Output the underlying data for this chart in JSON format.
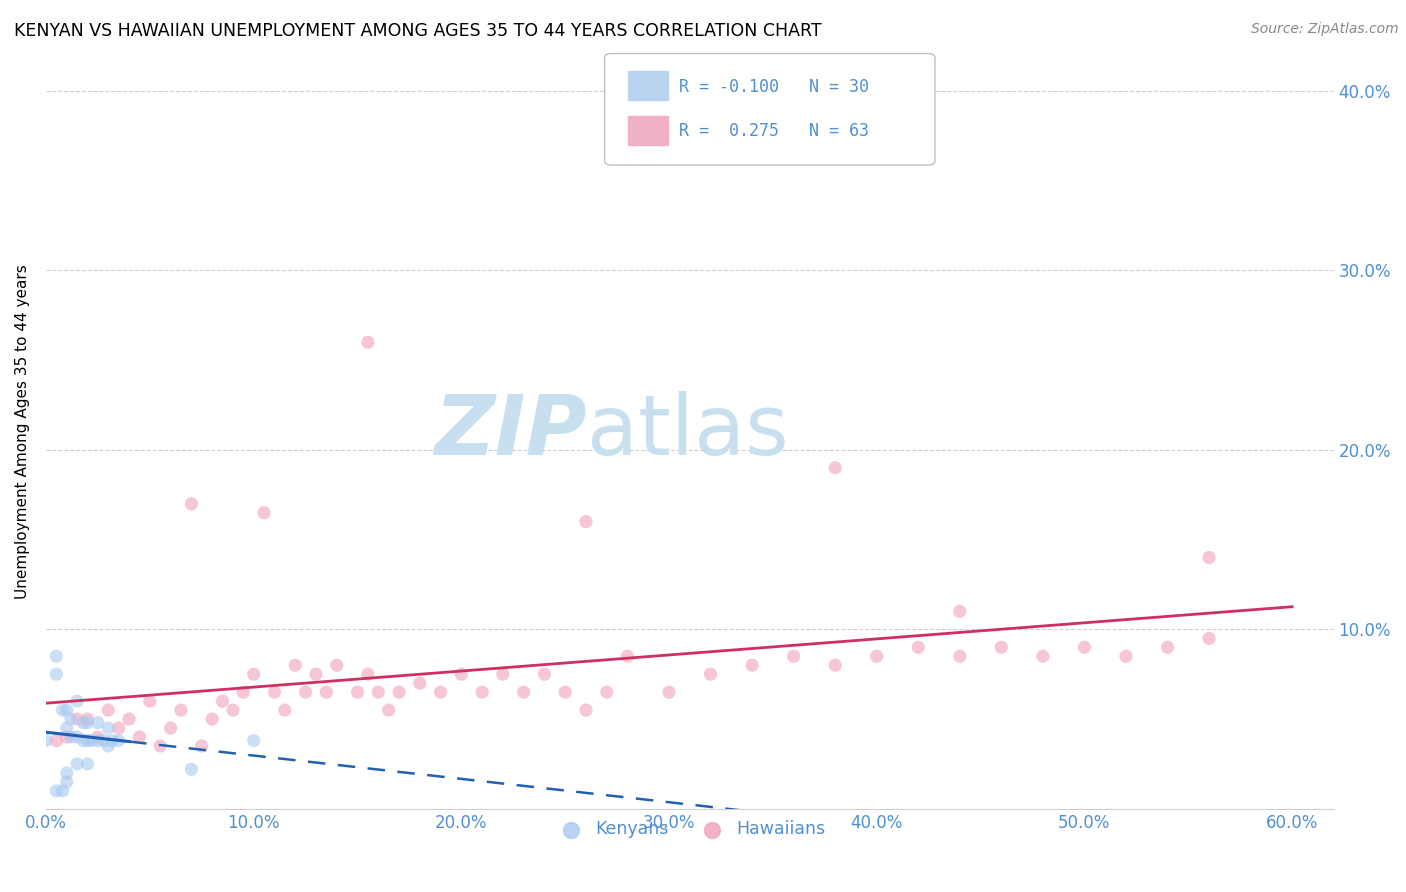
{
  "title": "KENYAN VS HAWAIIAN UNEMPLOYMENT AMONG AGES 35 TO 44 YEARS CORRELATION CHART",
  "source": "Source: ZipAtlas.com",
  "ylabel": "Unemployment Among Ages 35 to 44 years",
  "xlim": [
    0.0,
    0.62
  ],
  "ylim": [
    0.0,
    0.42
  ],
  "xticks": [
    0.0,
    0.1,
    0.2,
    0.3,
    0.4,
    0.5,
    0.6
  ],
  "yticks": [
    0.1,
    0.2,
    0.3,
    0.4
  ],
  "xticklabels": [
    "0.0%",
    "10.0%",
    "20.0%",
    "30.0%",
    "40.0%",
    "50.0%",
    "60.0%"
  ],
  "yticklabels_right": [
    "10.0%",
    "20.0%",
    "30.0%",
    "40.0%"
  ],
  "kenyan_x": [
    0.0,
    0.005,
    0.005,
    0.008,
    0.01,
    0.01,
    0.012,
    0.012,
    0.015,
    0.015,
    0.018,
    0.018,
    0.02,
    0.02,
    0.022,
    0.025,
    0.025,
    0.028,
    0.03,
    0.03,
    0.032,
    0.035,
    0.005,
    0.008,
    0.01,
    0.01,
    0.015,
    0.02,
    0.07,
    0.1
  ],
  "kenyan_y": [
    0.038,
    0.075,
    0.085,
    0.055,
    0.045,
    0.055,
    0.04,
    0.05,
    0.04,
    0.06,
    0.038,
    0.048,
    0.038,
    0.048,
    0.038,
    0.038,
    0.048,
    0.038,
    0.035,
    0.045,
    0.038,
    0.038,
    0.01,
    0.01,
    0.015,
    0.02,
    0.025,
    0.025,
    0.022,
    0.038
  ],
  "hawaiian_x": [
    0.005,
    0.01,
    0.015,
    0.02,
    0.025,
    0.03,
    0.035,
    0.04,
    0.045,
    0.05,
    0.055,
    0.06,
    0.065,
    0.07,
    0.075,
    0.08,
    0.085,
    0.09,
    0.095,
    0.1,
    0.11,
    0.115,
    0.12,
    0.125,
    0.13,
    0.135,
    0.14,
    0.15,
    0.155,
    0.16,
    0.165,
    0.17,
    0.18,
    0.19,
    0.2,
    0.21,
    0.22,
    0.23,
    0.24,
    0.25,
    0.26,
    0.27,
    0.28,
    0.3,
    0.32,
    0.34,
    0.36,
    0.38,
    0.4,
    0.42,
    0.44,
    0.46,
    0.48,
    0.5,
    0.52,
    0.54,
    0.56,
    0.105,
    0.155,
    0.26,
    0.38,
    0.44,
    0.56
  ],
  "hawaiian_y": [
    0.038,
    0.04,
    0.05,
    0.05,
    0.04,
    0.055,
    0.045,
    0.05,
    0.04,
    0.06,
    0.035,
    0.045,
    0.055,
    0.17,
    0.035,
    0.05,
    0.06,
    0.055,
    0.065,
    0.075,
    0.065,
    0.055,
    0.08,
    0.065,
    0.075,
    0.065,
    0.08,
    0.065,
    0.075,
    0.065,
    0.055,
    0.065,
    0.07,
    0.065,
    0.075,
    0.065,
    0.075,
    0.065,
    0.075,
    0.065,
    0.055,
    0.065,
    0.085,
    0.065,
    0.075,
    0.08,
    0.085,
    0.08,
    0.085,
    0.09,
    0.085,
    0.09,
    0.085,
    0.09,
    0.085,
    0.09,
    0.095,
    0.165,
    0.26,
    0.16,
    0.19,
    0.11,
    0.14
  ],
  "kenyan_color": "#a8c8f0",
  "hawaiian_color": "#f0a0b8",
  "kenyan_line_color": "#2060b0",
  "hawaiian_line_color": "#d03060",
  "scatter_alpha": 0.6,
  "scatter_size": 90,
  "background_color": "#ffffff",
  "grid_color": "#d0d0d0",
  "axis_color": "#5090d0",
  "watermark_zip": "ZIP",
  "watermark_atlas": "atlas",
  "watermark_color_zip": "#c8dff0",
  "watermark_color_atlas": "#c8dff0",
  "watermark_fontsize": 60
}
